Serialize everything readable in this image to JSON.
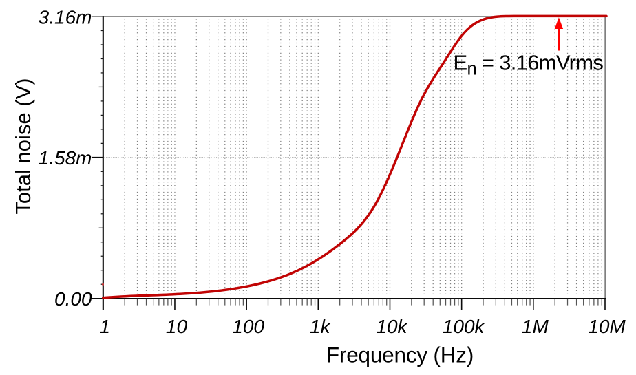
{
  "chart_data": {
    "type": "line",
    "title": "",
    "xlabel": "Frequency (Hz)",
    "ylabel": "Total noise (V)",
    "xscale": "log",
    "xlim": [
      1,
      10000000
    ],
    "ylim": [
      0,
      0.003162
    ],
    "grid": "dotted",
    "legend": "none",
    "xticks": [
      {
        "label": "1",
        "value": 1
      },
      {
        "label": "10",
        "value": 10
      },
      {
        "label": "100",
        "value": 100
      },
      {
        "label": "1k",
        "value": 1000
      },
      {
        "label": "10k",
        "value": 10000
      },
      {
        "label": "100k",
        "value": 100000
      },
      {
        "label": "1M",
        "value": 1000000
      },
      {
        "label": "10M",
        "value": 10000000
      }
    ],
    "yticks": [
      {
        "label": "0.00",
        "value": 0
      },
      {
        "label": "1.58m",
        "value": 0.001581
      },
      {
        "label": "3.16m",
        "value": 0.003162
      }
    ],
    "gridline_y_value": 0.001581,
    "series": [
      {
        "name": "Total noise",
        "color": "#c10404",
        "points": [
          [
            1.0,
            7.67e-06
          ],
          [
            1.092,
            1.0026e-05
          ],
          [
            1.193,
            1.2246e-05
          ],
          [
            1.304,
            1.434e-05
          ],
          [
            1.424,
            1.6315e-05
          ],
          [
            1.556,
            1.818e-05
          ],
          [
            1.7,
            1.9943e-05
          ],
          [
            1.857,
            2.1613e-05
          ],
          [
            2.029,
            2.3198e-05
          ],
          [
            2.216,
            2.4706e-05
          ],
          [
            2.421,
            2.6147e-05
          ],
          [
            2.645,
            2.7528e-05
          ],
          [
            2.889,
            2.8857e-05
          ],
          [
            3.156,
            3.0144e-05
          ],
          [
            3.448,
            3.1397e-05
          ],
          [
            3.767,
            3.2623e-05
          ],
          [
            4.115,
            3.3833e-05
          ],
          [
            4.495,
            3.5033e-05
          ],
          [
            4.911,
            3.6232e-05
          ],
          [
            5.365,
            3.7439e-05
          ],
          [
            5.861,
            3.8663e-05
          ],
          [
            6.403,
            3.9911e-05
          ],
          [
            6.995,
            4.1192e-05
          ],
          [
            7.641,
            4.2514e-05
          ],
          [
            8.348,
            4.3886e-05
          ],
          [
            9.119,
            4.5317e-05
          ],
          [
            9.962,
            4.6814e-05
          ],
          [
            10.88,
            4.8386e-05
          ],
          [
            11.89,
            5.0042e-05
          ],
          [
            12.99,
            5.179e-05
          ],
          [
            14.19,
            5.3635e-05
          ],
          [
            15.5,
            5.5587e-05
          ],
          [
            16.93,
            5.7652e-05
          ],
          [
            18.5,
            5.9838e-05
          ],
          [
            20.21,
            6.2151e-05
          ],
          [
            22.08,
            6.4599e-05
          ],
          [
            24.12,
            6.719e-05
          ],
          [
            26.35,
            6.993e-05
          ],
          [
            28.78,
            7.2827e-05
          ],
          [
            31.44,
            7.5887e-05
          ],
          [
            34.35,
            7.9119e-05
          ],
          [
            37.53,
            8.253e-05
          ],
          [
            40.99,
            8.6126e-05
          ],
          [
            44.78,
            8.9915e-05
          ],
          [
            48.92,
            9.3905e-05
          ],
          [
            53.45,
            9.8102e-05
          ],
          [
            58.39,
            0.00010251
          ],
          [
            63.78,
            0.00010715
          ],
          [
            69.68,
            0.00011201
          ],
          [
            76.12,
            0.00011711
          ],
          [
            83.16,
            0.00012246
          ],
          [
            90.85,
            0.00012805
          ],
          [
            99.25,
            0.0001339
          ],
          [
            108.4,
            0.00014002
          ],
          [
            118.4,
            0.00014642
          ],
          [
            129.4,
            0.00015312
          ],
          [
            141.4,
            0.00016014
          ],
          [
            154.4,
            0.00016749
          ],
          [
            168.7,
            0.00017521
          ],
          [
            184.3,
            0.00018331
          ],
          [
            201.3,
            0.00019182
          ],
          [
            219.9,
            0.00020074
          ],
          [
            240.3,
            0.00021011
          ],
          [
            262.5,
            0.00021994
          ],
          [
            286.7,
            0.00023026
          ],
          [
            313.2,
            0.00024108
          ],
          [
            342.2,
            0.00025243
          ],
          [
            373.8,
            0.00026432
          ],
          [
            408.4,
            0.00027678
          ],
          [
            446.1,
            0.00028983
          ],
          [
            487.4,
            0.00030348
          ],
          [
            532.4,
            0.00031776
          ],
          [
            581.7,
            0.00033269
          ],
          [
            635.4,
            0.00034829
          ],
          [
            694.2,
            0.00036457
          ],
          [
            758.3,
            0.00038152
          ],
          [
            828.5,
            0.00039913
          ],
          [
            905.0,
            0.00041741
          ],
          [
            988.7,
            0.00043634
          ],
          [
            1080.0,
            0.00045592
          ],
          [
            1180.0,
            0.00047614
          ],
          [
            1289.0,
            0.000497
          ],
          [
            1408.0,
            0.0005185
          ],
          [
            1538.0,
            0.00054062
          ],
          [
            1681.0,
            0.00056336
          ],
          [
            1836.0,
            0.00058672
          ],
          [
            2006.0,
            0.00061069
          ],
          [
            2191.0,
            0.00063526
          ],
          [
            2394.0,
            0.00066043
          ],
          [
            2615.0,
            0.00068637
          ],
          [
            2857.0,
            0.00071338
          ],
          [
            3121.0,
            0.00074183
          ],
          [
            3409.0,
            0.00077203
          ],
          [
            3724.0,
            0.00080434
          ],
          [
            4069.0,
            0.00083909
          ],
          [
            4445.0,
            0.00087661
          ],
          [
            4697.0,
            0.00090163
          ],
          [
            4964.0,
            0.00092794
          ],
          [
            5246.0,
            0.00095564
          ],
          [
            5544.0,
            0.0009848
          ],
          [
            5859.0,
            0.0010155
          ],
          [
            6192.0,
            0.0010479
          ],
          [
            6544.0,
            0.0010819
          ],
          [
            6916.0,
            0.0011175
          ],
          [
            7308.0,
            0.0011547
          ],
          [
            7724.0,
            0.0011934
          ],
          [
            8162.0,
            0.0012334
          ],
          [
            8626.0,
            0.0012746
          ],
          [
            9116.0,
            0.001317
          ],
          [
            9634.0,
            0.0013604
          ],
          [
            10180.0,
            0.0014048
          ],
          [
            10760.0,
            0.00145
          ],
          [
            11370.0,
            0.001496
          ],
          [
            12020.0,
            0.0015427
          ],
          [
            12700.0,
            0.0015899
          ],
          [
            13420.0,
            0.0016376
          ],
          [
            14180.0,
            0.0016857
          ],
          [
            14990.0,
            0.001734
          ],
          [
            15840.0,
            0.0017823
          ],
          [
            16740.0,
            0.0018306
          ],
          [
            17690.0,
            0.0018785
          ],
          [
            18700.0,
            0.001926
          ],
          [
            19760.0,
            0.0019729
          ],
          [
            20880.0,
            0.0020189
          ],
          [
            22070.0,
            0.0020641
          ],
          [
            23320.0,
            0.0021081
          ],
          [
            24650.0,
            0.0021508
          ],
          [
            26050.0,
            0.002192
          ],
          [
            27530.0,
            0.0022317
          ],
          [
            29090.0,
            0.0022696
          ],
          [
            30750.0,
            0.0023059
          ],
          [
            32490.0,
            0.0023408
          ],
          [
            34340.0,
            0.0023745
          ],
          [
            36290.0,
            0.002407
          ],
          [
            38350.0,
            0.0024387
          ],
          [
            40530.0,
            0.0024695
          ],
          [
            42830.0,
            0.0024998
          ],
          [
            45270.0,
            0.0025296
          ],
          [
            47840.0,
            0.0025592
          ],
          [
            50560.0,
            0.0025886
          ],
          [
            53430.0,
            0.0026181
          ],
          [
            56470.0,
            0.0026478
          ],
          [
            59670.0,
            0.0026779
          ],
          [
            63060.0,
            0.0027082
          ],
          [
            66650.0,
            0.0027385
          ],
          [
            70430.0,
            0.0027687
          ],
          [
            74440.0,
            0.0027986
          ],
          [
            78660.0,
            0.002828
          ],
          [
            83130.0,
            0.0028566
          ],
          [
            87860.0,
            0.0028844
          ],
          [
            92850.0,
            0.0029111
          ],
          [
            98120.0,
            0.0029366
          ],
          [
            103700.0,
            0.0029606
          ],
          [
            109600.0,
            0.002983
          ],
          [
            119700.0,
            0.0030152
          ],
          [
            130800.0,
            0.0030431
          ],
          [
            142900.0,
            0.003067
          ],
          [
            156100.0,
            0.0030873
          ],
          [
            170500.0,
            0.0031045
          ],
          [
            186300.0,
            0.0031187
          ],
          [
            203500.0,
            0.0031305
          ],
          [
            222300.0,
            0.00314
          ],
          [
            242900.0,
            0.0031476
          ],
          [
            265300.0,
            0.0031535
          ],
          [
            289800.0,
            0.003158
          ],
          [
            316600.0,
            0.0031612
          ],
          [
            345900.0,
            0.0031635
          ],
          [
            377900.0,
            0.003165
          ],
          [
            412800.0,
            0.0031658
          ],
          [
            451000.0,
            0.0031663
          ],
          [
            538200.0,
            0.0031666
          ],
          [
            642300.0,
            0.0031666
          ],
          [
            766500.0,
            0.0031666
          ],
          [
            914800.0,
            0.0031666
          ],
          [
            1092000.0,
            0.0031666
          ],
          [
            1303000.0,
            0.0031666
          ],
          [
            1555000.0,
            0.0031666
          ],
          [
            1856000.0,
            0.0031666
          ],
          [
            2215000.0,
            0.0031666
          ],
          [
            2643000.0,
            0.0031666
          ],
          [
            3154000.0,
            0.0031666
          ],
          [
            3764000.0,
            0.0031666
          ],
          [
            4493000.0,
            0.0031666
          ],
          [
            5362000.0,
            0.0031666
          ],
          [
            6399000.0,
            0.0031666
          ],
          [
            7636000.0,
            0.0031666
          ],
          [
            9113000.0,
            0.0031666
          ],
          [
            10450000.0,
            0.0031666
          ]
        ]
      }
    ],
    "stray_point": {
      "f": 1.0,
      "v": 0.000157
    },
    "annotation": {
      "text_e": "E",
      "text_sub": "n",
      "text_rest": " = 3.16mVrms",
      "arrow_f_hz": 2270000,
      "arrow_color": "#ff0000"
    }
  },
  "colors": {
    "background": "#ffffff",
    "curve": "#c10404",
    "arrow": "#ff0000",
    "grid_dots": "#808080",
    "frame_gray": "#808080",
    "axis_black": "#0a0a0a",
    "text": "#000000"
  }
}
